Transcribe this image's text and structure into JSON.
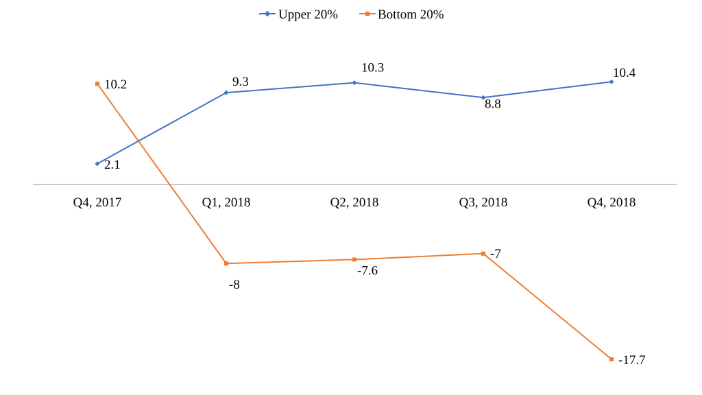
{
  "colors": {
    "upper": "#4472C4",
    "bottom": "#ED7D31",
    "axis": "#A6A6A6",
    "text": "#000000"
  },
  "chart_data": {
    "type": "line",
    "categories": [
      "Q4, 2017",
      "Q1, 2018",
      "Q2, 2018",
      "Q3, 2018",
      "Q4, 2018"
    ],
    "series": [
      {
        "name": "Upper 20%",
        "values": [
          2.1,
          9.3,
          10.3,
          8.8,
          10.4
        ],
        "labels": [
          "2.1",
          "9.3",
          "10.3",
          "8.8",
          "10.4"
        ]
      },
      {
        "name": "Bottom 20%",
        "values": [
          10.2,
          -8,
          -7.6,
          -7,
          -17.7
        ],
        "labels": [
          "10.2",
          "-8",
          "-7.6",
          "-7",
          "-17.7"
        ]
      }
    ],
    "ylim": [
      -18,
      11
    ],
    "grid": false,
    "legend": "top-center"
  }
}
